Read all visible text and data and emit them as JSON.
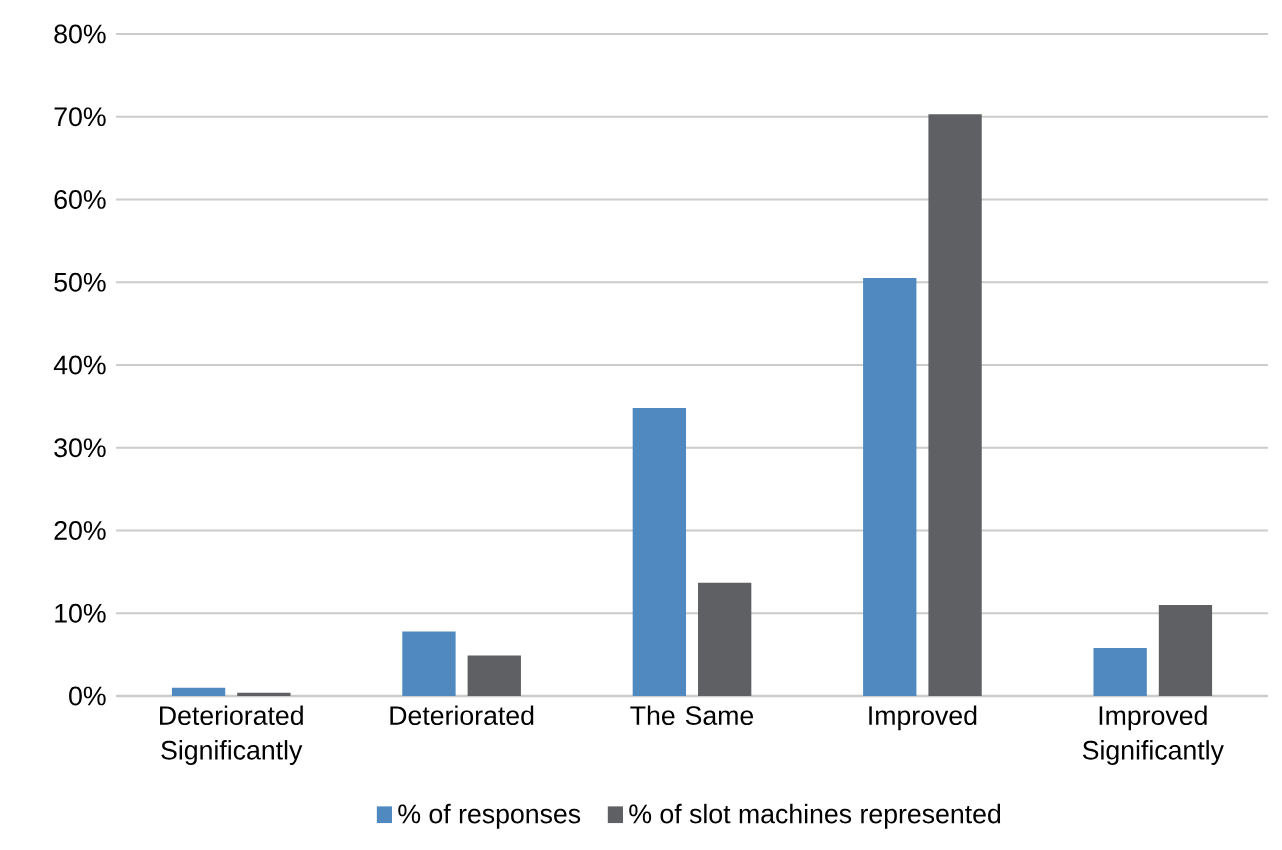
{
  "chart_data": {
    "type": "bar",
    "categories": [
      "Deteriorated Significantly",
      "Deteriorated",
      "The Same",
      "Improved",
      "Improved Significantly"
    ],
    "series": [
      {
        "name": "% of responses",
        "color": "#4f89bf",
        "values": [
          1.0,
          7.8,
          34.8,
          50.5,
          5.8
        ]
      },
      {
        "name": "% of slot machines represented",
        "color": "#5f6064",
        "values": [
          0.4,
          4.9,
          13.7,
          70.3,
          11.0
        ]
      }
    ],
    "ylim": [
      0,
      80
    ],
    "yticks": [
      {
        "value": 0,
        "label": "0%"
      },
      {
        "value": 10,
        "label": "10%"
      },
      {
        "value": 20,
        "label": "20%"
      },
      {
        "value": 30,
        "label": "30%"
      },
      {
        "value": 40,
        "label": "40%"
      },
      {
        "value": 50,
        "label": "50%"
      },
      {
        "value": 60,
        "label": "60%"
      },
      {
        "value": 70,
        "label": "70%"
      },
      {
        "value": 80,
        "label": "80%"
      }
    ],
    "grid": "y",
    "legend": "bottom"
  }
}
